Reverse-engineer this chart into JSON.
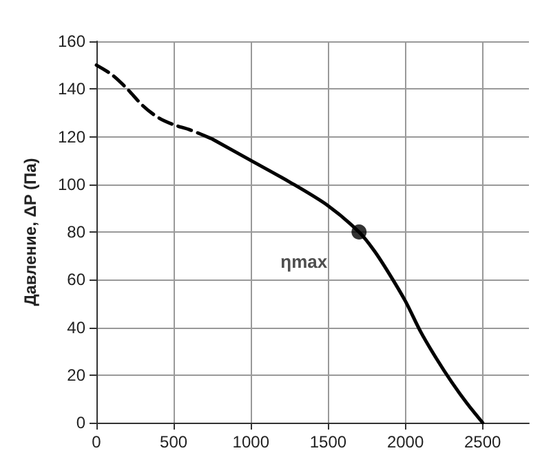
{
  "chart_data": {
    "type": "line",
    "ylabel": "Давление, ΔP (Па)",
    "xlim": [
      0,
      2800
    ],
    "xticks": [
      0,
      500,
      1000,
      1500,
      2000,
      2500
    ],
    "ylim": [
      0,
      160
    ],
    "yticks": [
      0,
      20,
      40,
      60,
      80,
      100,
      120,
      140,
      160
    ],
    "grid": true,
    "series": [
      {
        "color": "#000000",
        "line_style": "dashed",
        "marker": "none",
        "x": [
          0,
          100,
          200,
          300,
          400,
          500,
          600,
          750
        ],
        "values": [
          150,
          146,
          140,
          133,
          128,
          125,
          123,
          119
        ]
      },
      {
        "color": "#000000",
        "line_style": "solid",
        "marker": "none",
        "x": [
          750,
          1000,
          1250,
          1500,
          1700,
          1800,
          1900,
          2000,
          2100,
          2200,
          2300,
          2400,
          2500
        ],
        "values": [
          119,
          110,
          101,
          91,
          80,
          72,
          62,
          51,
          38,
          27,
          17,
          8,
          0
        ]
      },
      {
        "type": "scatter",
        "color": "#000000",
        "marker": "circle",
        "x": [
          1700
        ],
        "values": [
          80
        ]
      }
    ],
    "annotations": [
      {
        "text": "ηmax",
        "x": 1700,
        "y": 80
      }
    ]
  }
}
